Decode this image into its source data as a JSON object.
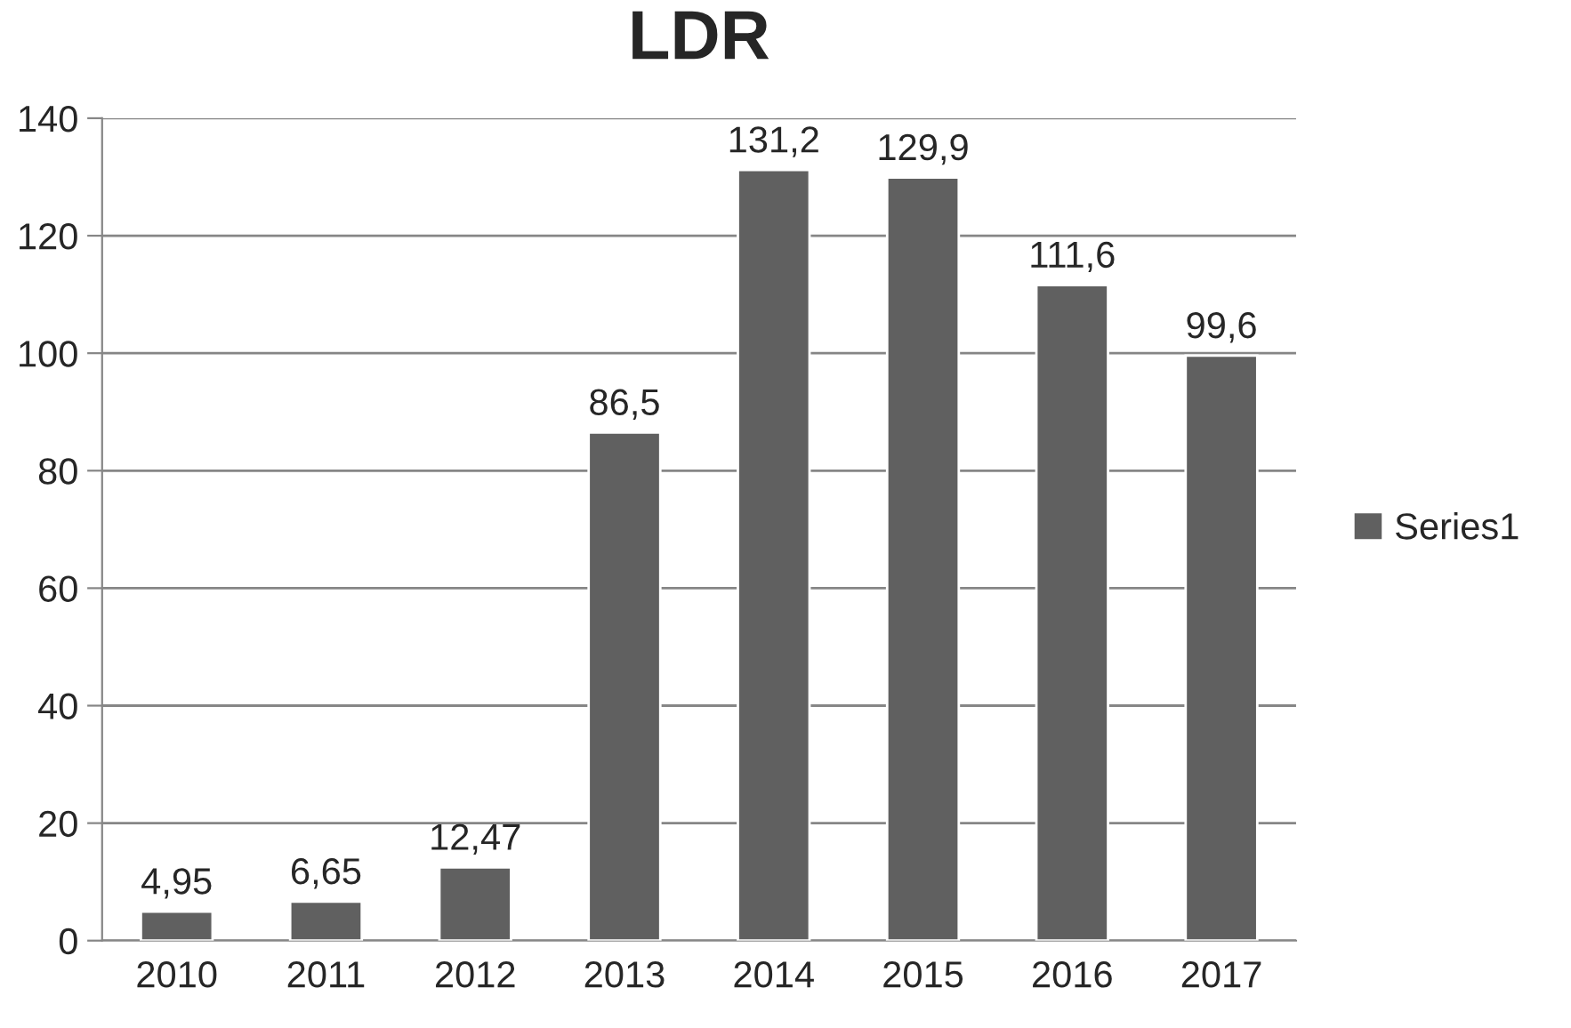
{
  "chart_data": {
    "type": "bar",
    "title": "LDR",
    "categories": [
      "2010",
      "2011",
      "2012",
      "2013",
      "2014",
      "2015",
      "2016",
      "2017"
    ],
    "series": [
      {
        "name": "Series1",
        "color": "#606060",
        "values": [
          4.95,
          6.65,
          12.47,
          86.5,
          131.2,
          129.9,
          111.6,
          99.6
        ],
        "value_labels": [
          "4,95",
          "6,65",
          "12,47",
          "86,5",
          "131,2",
          "129,9",
          "111,6",
          "99,6"
        ]
      }
    ],
    "ylim": [
      0,
      140
    ],
    "yticks": [
      0,
      20,
      40,
      60,
      80,
      100,
      120,
      140
    ],
    "grid": "y",
    "legend": "right"
  }
}
